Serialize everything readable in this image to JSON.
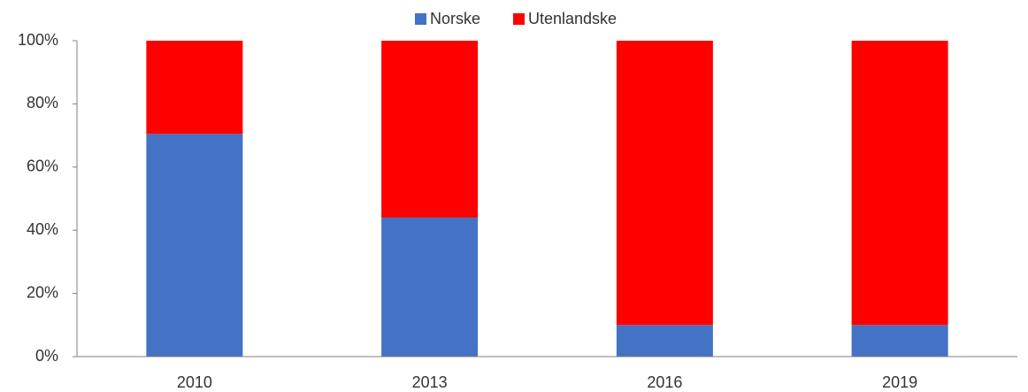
{
  "chart_data": {
    "type": "stacked_bar",
    "categories": [
      "2010",
      "2013",
      "2016",
      "2019"
    ],
    "series": [
      {
        "name": "Norske",
        "color": "#4472c4",
        "values": [
          70.5,
          44,
          10,
          10
        ]
      },
      {
        "name": "Utenlandske",
        "color": "#ff0000",
        "values": [
          29.5,
          56,
          90,
          90
        ]
      }
    ],
    "ylim": [
      0,
      100
    ],
    "yticks": [
      {
        "value": 0,
        "label": "0%"
      },
      {
        "value": 20,
        "label": "20%"
      },
      {
        "value": 40,
        "label": "40%"
      },
      {
        "value": 60,
        "label": "60%"
      },
      {
        "value": 80,
        "label": "80%"
      },
      {
        "value": 100,
        "label": "100%"
      }
    ],
    "legend": "top"
  }
}
